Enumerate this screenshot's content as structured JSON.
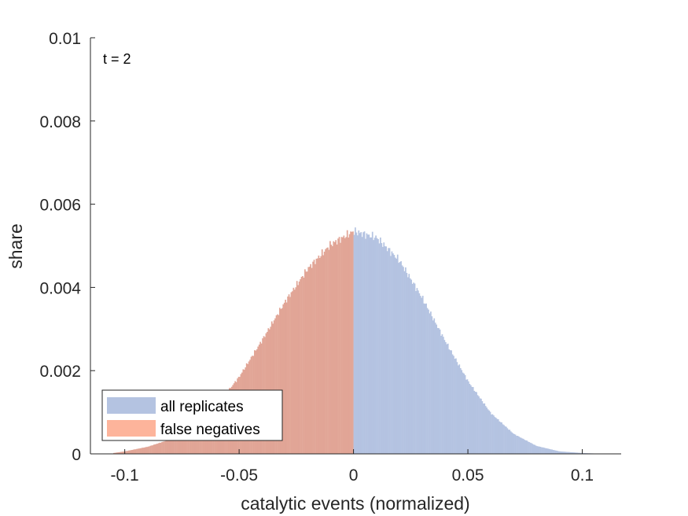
{
  "chart_data": {
    "type": "bar",
    "title": "",
    "annotation": "t = 2",
    "xlabel": "catalytic events (normalized)",
    "ylabel": "share",
    "xlim": [
      -0.115,
      0.117
    ],
    "ylim": [
      0,
      0.01
    ],
    "xticks": [
      -0.1,
      -0.05,
      0,
      0.05,
      0.1
    ],
    "xtick_labels": [
      "-0.1",
      "-0.05",
      "0",
      "0.05",
      "0.1"
    ],
    "yticks": [
      0,
      0.002,
      0.004,
      0.006,
      0.008,
      0.01
    ],
    "ytick_labels": [
      "0",
      "0.002",
      "0.004",
      "0.006",
      "0.008",
      "0.01"
    ],
    "grid": false,
    "legend_position": "bottom-left",
    "series": [
      {
        "name": "all replicates",
        "color": "#b4c3e1",
        "x": [
          -0.105,
          -0.1,
          -0.09,
          -0.08,
          -0.07,
          -0.06,
          -0.05,
          -0.04,
          -0.03,
          -0.02,
          -0.01,
          0,
          0.01,
          0.02,
          0.03,
          0.04,
          0.05,
          0.06,
          0.07,
          0.08,
          0.09,
          0.1,
          0.105
        ],
        "values": [
          2e-05,
          6e-05,
          0.00017,
          0.00035,
          0.00066,
          0.00115,
          0.00185,
          0.00273,
          0.00365,
          0.00445,
          0.00503,
          0.00535,
          0.0052,
          0.00465,
          0.00375,
          0.00272,
          0.00175,
          0.00098,
          0.00048,
          0.00019,
          6e-05,
          2e-05,
          1e-05
        ]
      },
      {
        "name": "false negatives",
        "color": "#fdb49b",
        "x": [
          -0.105,
          -0.1,
          -0.09,
          -0.08,
          -0.07,
          -0.06,
          -0.05,
          -0.04,
          -0.03,
          -0.02,
          -0.01,
          0
        ],
        "values": [
          2e-05,
          6e-05,
          0.00017,
          0.00035,
          0.00066,
          0.00115,
          0.00185,
          0.00273,
          0.00365,
          0.00445,
          0.00503,
          0.00535
        ]
      }
    ],
    "overlap_color": "#e1a596"
  }
}
